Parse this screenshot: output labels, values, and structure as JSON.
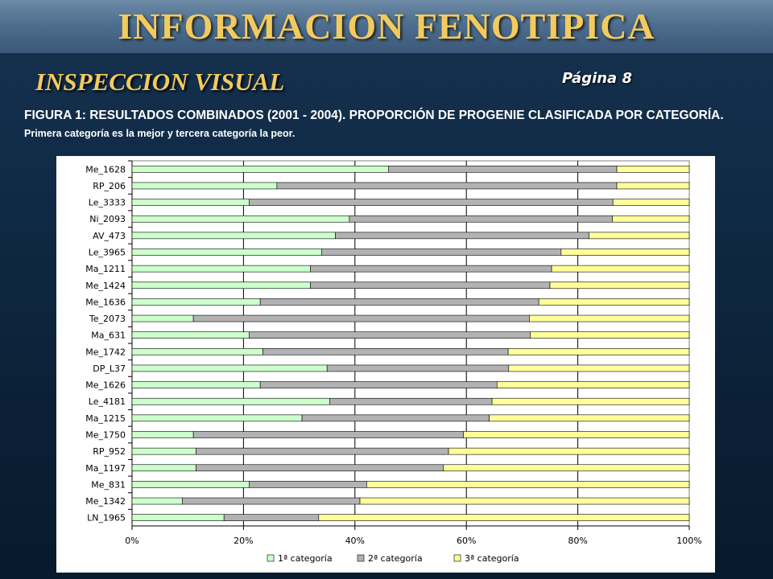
{
  "header": {
    "title": "INFORMACION FENOTIPICA"
  },
  "section": {
    "title": "INSPECCION VISUAL",
    "page": "Página 8"
  },
  "figure": {
    "caption_main": "FIGURA 1: RESULTADOS COMBINADOS (2001 - 2004). PROPORCIÓN DE PROGENIE CLASIFICADA POR CATEGORÍA.",
    "caption_note": "Primera categoría es la mejor y tercera categoría la peor."
  },
  "chart_data": {
    "type": "bar",
    "orientation": "horizontal",
    "stacked": "percent",
    "categories": [
      "Me_1628",
      "RP_206",
      "Le_3333",
      "Ni_2093",
      "AV_473",
      "Le_3965",
      "Ma_1211",
      "Me_1424",
      "Me_1636",
      "Te_2073",
      "Ma_631",
      "Me_1742",
      "DP_L37",
      "Me_1626",
      "Le_4181",
      "Ma_1215",
      "Me_1750",
      "RP_952",
      "Ma_1197",
      "Me_831",
      "Me_1342",
      "LN_1965"
    ],
    "series": [
      {
        "name": "1ª categoría",
        "color": "#ccffcc",
        "values": [
          46,
          26,
          21,
          39,
          36.5,
          34,
          32,
          32,
          23,
          11,
          21,
          23.5,
          35,
          23,
          35.5,
          30.5,
          11,
          11.5,
          11.5,
          21,
          9,
          16.5
        ]
      },
      {
        "name": "2ª categoría",
        "color": "#b2b2b2",
        "values": [
          41,
          61,
          65.3,
          47.2,
          45.5,
          43,
          43.3,
          43,
          50,
          60.3,
          50.5,
          44,
          32.6,
          42.5,
          29.1,
          33.6,
          48.5,
          45.3,
          44.4,
          21.1,
          31.9,
          17
        ]
      },
      {
        "name": "3ª categoría",
        "color": "#ffff99",
        "values": [
          13,
          13,
          13.7,
          13.8,
          18,
          23,
          24.7,
          25,
          27,
          28.7,
          28.5,
          32.5,
          32.4,
          34.5,
          35.4,
          35.9,
          40.5,
          43.2,
          44.1,
          57.9,
          59.1,
          66.5
        ]
      }
    ],
    "x_ticks": [
      "0%",
      "20%",
      "40%",
      "60%",
      "80%",
      "100%"
    ],
    "xlim": [
      0,
      100
    ],
    "grid": "vertical",
    "legend": "bottom"
  }
}
